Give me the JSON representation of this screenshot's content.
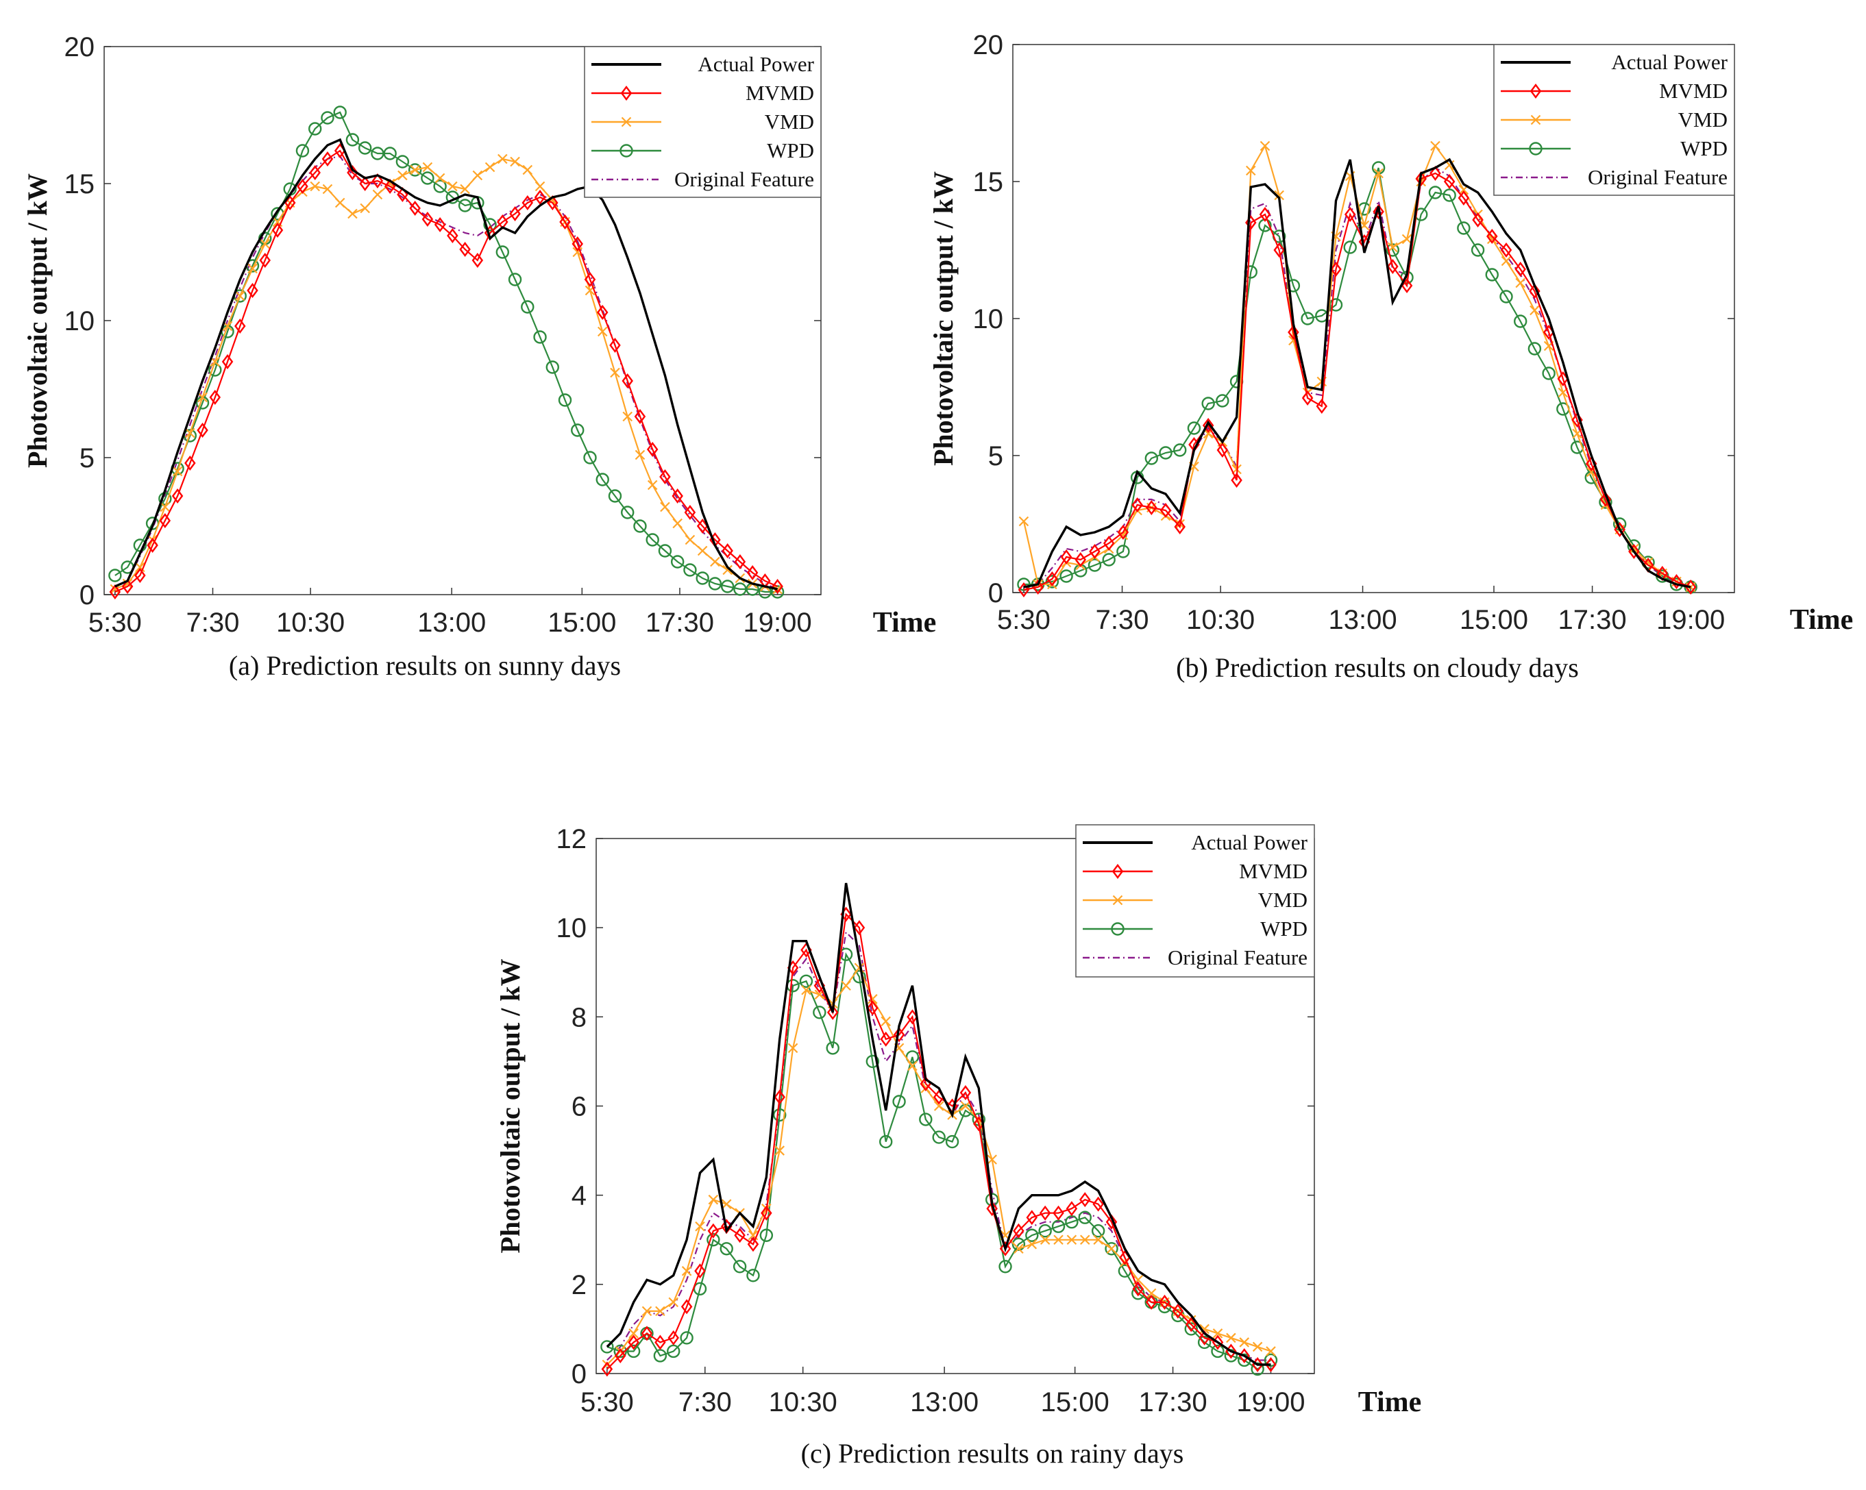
{
  "colors": {
    "actual": "#000000",
    "mvmd": "#ff0000",
    "vmd": "#ffa528",
    "wpd": "#2e8b3e",
    "orig": "#8b1a8b"
  },
  "chart_data": [
    {
      "id": "a",
      "type": "line",
      "caption": "(a)  Prediction results on sunny days",
      "ylabel": "Photovoltaic output / kW",
      "xlabel": "Time",
      "ylim": [
        0,
        20
      ],
      "yticks": [
        0,
        5,
        10,
        15,
        20
      ],
      "xlim": [
        0,
        66
      ],
      "xticks": [
        {
          "v": 1,
          "l": "5:30"
        },
        {
          "v": 10,
          "l": "7:30"
        },
        {
          "v": 19,
          "l": "10:30"
        },
        {
          "v": 32,
          "l": "13:00"
        },
        {
          "v": 44,
          "l": "15:00"
        },
        {
          "v": 53,
          "l": "17:30"
        },
        {
          "v": 62,
          "l": "19:00"
        }
      ],
      "legend": {
        "position": "top-right",
        "entries": [
          "Actual Power",
          "MVMD",
          "VMD",
          "WPD",
          "Original Feature"
        ]
      },
      "series": [
        {
          "name": "Actual Power",
          "key": "actual",
          "marker": "none",
          "values": [
            0.3,
            0.5,
            1.5,
            2.5,
            3.8,
            5.2,
            6.5,
            7.8,
            9.0,
            10.3,
            11.5,
            12.5,
            13.3,
            14.0,
            14.6,
            15.3,
            15.9,
            16.4,
            16.6,
            15.5,
            15.2,
            15.3,
            15.1,
            14.8,
            14.5,
            14.3,
            14.2,
            14.4,
            14.6,
            14.5,
            13.0,
            13.4,
            13.2,
            13.8,
            14.2,
            14.5,
            14.6,
            14.8,
            14.9,
            14.4,
            13.5,
            12.3,
            11.0,
            9.5,
            8.0,
            6.2,
            4.6,
            3.0,
            1.8,
            1.0,
            0.6,
            0.4,
            0.3,
            0.2
          ]
        },
        {
          "name": "MVMD",
          "key": "mvmd",
          "marker": "diamond",
          "values": [
            0.1,
            0.3,
            0.7,
            1.8,
            2.7,
            3.6,
            4.8,
            6.0,
            7.2,
            8.5,
            9.8,
            11.1,
            12.2,
            13.3,
            14.3,
            14.9,
            15.4,
            15.9,
            16.2,
            15.4,
            15.0,
            15.1,
            14.9,
            14.6,
            14.1,
            13.7,
            13.5,
            13.1,
            12.6,
            12.2,
            13.2,
            13.6,
            13.9,
            14.3,
            14.5,
            14.3,
            13.6,
            12.8,
            11.5,
            10.3,
            9.1,
            7.8,
            6.5,
            5.3,
            4.3,
            3.6,
            3.0,
            2.5,
            2.0,
            1.6,
            1.2,
            0.8,
            0.5,
            0.3
          ]
        },
        {
          "name": "VMD",
          "key": "vmd",
          "marker": "x",
          "values": [
            0.2,
            0.4,
            1.0,
            2.0,
            3.2,
            4.5,
            5.9,
            7.2,
            8.5,
            9.8,
            10.9,
            11.9,
            12.8,
            13.6,
            14.3,
            14.7,
            14.9,
            14.8,
            14.3,
            13.9,
            14.1,
            14.6,
            15.0,
            15.3,
            15.5,
            15.6,
            15.2,
            14.9,
            14.8,
            15.3,
            15.6,
            15.9,
            15.8,
            15.5,
            14.9,
            14.4,
            13.6,
            12.5,
            11.1,
            9.6,
            8.1,
            6.5,
            5.1,
            4.0,
            3.2,
            2.6,
            2.0,
            1.6,
            1.2,
            0.9,
            0.6,
            0.4,
            0.3,
            0.2
          ]
        },
        {
          "name": "WPD",
          "key": "wpd",
          "marker": "circle",
          "values": [
            0.7,
            1.0,
            1.8,
            2.6,
            3.5,
            4.6,
            5.8,
            7.0,
            8.2,
            9.6,
            10.9,
            12.0,
            13.0,
            13.9,
            14.8,
            16.2,
            17.0,
            17.4,
            17.6,
            16.6,
            16.3,
            16.1,
            16.1,
            15.8,
            15.5,
            15.2,
            14.9,
            14.5,
            14.2,
            14.3,
            13.5,
            12.5,
            11.5,
            10.5,
            9.4,
            8.3,
            7.1,
            6.0,
            5.0,
            4.2,
            3.6,
            3.0,
            2.5,
            2.0,
            1.6,
            1.2,
            0.9,
            0.6,
            0.4,
            0.3,
            0.2,
            0.2,
            0.1,
            0.1
          ]
        },
        {
          "name": "Original Feature",
          "key": "orig",
          "marker": "none",
          "values": [
            0.3,
            0.5,
            1.4,
            2.4,
            3.6,
            4.9,
            6.2,
            7.5,
            8.7,
            10.0,
            11.2,
            12.3,
            13.2,
            14.0,
            14.6,
            15.1,
            15.6,
            15.9,
            16.0,
            15.3,
            15.0,
            15.0,
            14.8,
            14.5,
            14.1,
            13.8,
            13.6,
            13.4,
            13.2,
            13.1,
            13.4,
            13.8,
            14.1,
            14.4,
            14.6,
            14.4,
            13.8,
            12.9,
            11.7,
            10.4,
            9.1,
            7.7,
            6.4,
            5.2,
            4.2,
            3.5,
            2.9,
            2.3,
            1.8,
            1.4,
            1.0,
            0.7,
            0.4,
            0.2
          ]
        }
      ]
    },
    {
      "id": "b",
      "type": "line",
      "caption": "(b)   Prediction results on cloudy days",
      "ylabel": "Photovoltaic output / kW",
      "xlabel": "Time",
      "ylim": [
        0,
        20
      ],
      "yticks": [
        0,
        5,
        10,
        15,
        20
      ],
      "xlim": [
        0,
        66
      ],
      "xticks": [
        {
          "v": 1,
          "l": "5:30"
        },
        {
          "v": 10,
          "l": "7:30"
        },
        {
          "v": 19,
          "l": "10:30"
        },
        {
          "v": 32,
          "l": "13:00"
        },
        {
          "v": 44,
          "l": "15:00"
        },
        {
          "v": 53,
          "l": "17:30"
        },
        {
          "v": 62,
          "l": "19:00"
        }
      ],
      "legend": {
        "position": "top-right",
        "entries": [
          "Actual Power",
          "MVMD",
          "VMD",
          "WPD",
          "Original Feature"
        ]
      },
      "series": [
        {
          "name": "Actual Power",
          "key": "actual",
          "marker": "none",
          "values": [
            0.2,
            0.3,
            1.5,
            2.4,
            2.1,
            2.2,
            2.4,
            2.8,
            4.4,
            3.8,
            3.6,
            2.9,
            5.2,
            6.2,
            5.5,
            6.4,
            14.8,
            14.9,
            14.4,
            9.8,
            7.5,
            7.4,
            14.3,
            15.8,
            12.4,
            14.1,
            10.6,
            11.6,
            15.3,
            15.5,
            15.8,
            14.9,
            14.6,
            13.9,
            13.1,
            12.5,
            11.2,
            10.0,
            8.4,
            6.6,
            5.0,
            3.6,
            2.3,
            1.5,
            0.8,
            0.5,
            0.3,
            0.2
          ]
        },
        {
          "name": "MVMD",
          "key": "mvmd",
          "marker": "diamond",
          "values": [
            0.1,
            0.2,
            0.5,
            1.3,
            1.2,
            1.5,
            1.8,
            2.2,
            3.2,
            3.1,
            3.0,
            2.4,
            5.4,
            6.1,
            5.2,
            4.1,
            13.5,
            13.8,
            12.5,
            9.5,
            7.1,
            6.8,
            11.8,
            13.8,
            12.8,
            13.9,
            11.9,
            11.2,
            15.1,
            15.3,
            15.0,
            14.4,
            13.6,
            13.0,
            12.5,
            11.8,
            11.0,
            9.5,
            7.8,
            6.3,
            4.7,
            3.4,
            2.3,
            1.5,
            1.0,
            0.7,
            0.4,
            0.2
          ]
        },
        {
          "name": "VMD",
          "key": "vmd",
          "marker": "x",
          "values": [
            2.6,
            0.3,
            0.3,
            1.1,
            1.0,
            1.3,
            1.6,
            2.1,
            3.0,
            3.1,
            2.8,
            2.5,
            4.6,
            5.8,
            5.5,
            4.5,
            15.4,
            16.3,
            14.5,
            9.2,
            7.3,
            7.7,
            13.0,
            15.2,
            13.4,
            15.3,
            12.6,
            12.9,
            15.0,
            16.3,
            15.6,
            14.7,
            13.8,
            12.9,
            12.1,
            11.3,
            10.3,
            9.0,
            7.3,
            5.8,
            4.4,
            3.2,
            2.3,
            1.6,
            1.1,
            0.7,
            0.4,
            0.2
          ]
        },
        {
          "name": "WPD",
          "key": "wpd",
          "marker": "circle",
          "values": [
            0.3,
            0.3,
            0.4,
            0.6,
            0.8,
            1.0,
            1.2,
            1.5,
            4.2,
            4.9,
            5.1,
            5.2,
            6.0,
            6.9,
            7.0,
            7.7,
            11.7,
            13.4,
            13.0,
            11.2,
            10.0,
            10.1,
            10.5,
            12.6,
            14.0,
            15.5,
            12.5,
            11.5,
            13.8,
            14.6,
            14.5,
            13.3,
            12.5,
            11.6,
            10.8,
            9.9,
            8.9,
            8.0,
            6.7,
            5.3,
            4.2,
            3.3,
            2.5,
            1.7,
            1.1,
            0.6,
            0.3,
            0.2
          ]
        },
        {
          "name": "Original Feature",
          "key": "orig",
          "marker": "none",
          "values": [
            0.2,
            0.3,
            0.9,
            1.6,
            1.5,
            1.7,
            2.0,
            2.4,
            3.4,
            3.4,
            3.2,
            2.6,
            5.2,
            6.0,
            5.5,
            4.6,
            14.0,
            14.2,
            13.0,
            9.6,
            7.3,
            7.2,
            12.5,
            14.2,
            12.8,
            14.3,
            11.8,
            11.6,
            15.0,
            15.5,
            15.2,
            14.4,
            13.7,
            13.0,
            12.3,
            11.6,
            10.7,
            9.4,
            7.8,
            6.2,
            4.6,
            3.4,
            2.3,
            1.5,
            1.0,
            0.6,
            0.4,
            0.2
          ]
        }
      ]
    },
    {
      "id": "c",
      "type": "line",
      "caption": "(c)   Prediction results on rainy days",
      "ylabel": "Photovoltaic output / kW",
      "xlabel": "Time",
      "ylim": [
        0,
        12
      ],
      "yticks": [
        0,
        2,
        4,
        6,
        8,
        10,
        12
      ],
      "xlim": [
        0,
        66
      ],
      "xticks": [
        {
          "v": 1,
          "l": "5:30"
        },
        {
          "v": 10,
          "l": "7:30"
        },
        {
          "v": 19,
          "l": "10:30"
        },
        {
          "v": 32,
          "l": "13:00"
        },
        {
          "v": 44,
          "l": "15:00"
        },
        {
          "v": 53,
          "l": "17:30"
        },
        {
          "v": 62,
          "l": "19:00"
        }
      ],
      "legend": {
        "position": "top-right",
        "entries": [
          "Actual Power",
          "MVMD",
          "VMD",
          "WPD",
          "Original Feature"
        ]
      },
      "series": [
        {
          "name": "Actual Power",
          "key": "actual",
          "marker": "none",
          "values": [
            0.6,
            0.9,
            1.6,
            2.1,
            2.0,
            2.2,
            3.0,
            4.5,
            4.8,
            3.2,
            3.6,
            3.3,
            4.4,
            7.5,
            9.7,
            9.7,
            8.9,
            8.1,
            11.0,
            9.3,
            7.5,
            5.9,
            7.8,
            8.7,
            6.6,
            6.4,
            5.8,
            7.1,
            6.4,
            3.8,
            2.8,
            3.7,
            4.0,
            4.0,
            4.0,
            4.1,
            4.3,
            4.1,
            3.5,
            2.8,
            2.3,
            2.1,
            2.0,
            1.6,
            1.3,
            0.9,
            0.7,
            0.5,
            0.4,
            0.2,
            0.2
          ]
        },
        {
          "name": "MVMD",
          "key": "mvmd",
          "marker": "diamond",
          "values": [
            0.1,
            0.4,
            0.7,
            0.9,
            0.7,
            0.8,
            1.5,
            2.3,
            3.2,
            3.3,
            3.1,
            2.9,
            3.6,
            6.2,
            9.1,
            9.5,
            8.7,
            8.1,
            10.3,
            10.0,
            8.2,
            7.5,
            7.6,
            8.0,
            6.5,
            6.2,
            6.0,
            6.3,
            5.6,
            3.7,
            2.8,
            3.2,
            3.5,
            3.6,
            3.6,
            3.7,
            3.9,
            3.8,
            3.4,
            2.6,
            1.9,
            1.6,
            1.6,
            1.4,
            1.1,
            0.8,
            0.7,
            0.5,
            0.4,
            0.2,
            0.2
          ]
        },
        {
          "name": "VMD",
          "key": "vmd",
          "marker": "x",
          "values": [
            0.2,
            0.5,
            0.9,
            1.4,
            1.4,
            1.6,
            2.3,
            3.3,
            3.9,
            3.8,
            3.6,
            3.1,
            3.7,
            5.0,
            7.3,
            8.6,
            8.5,
            8.3,
            8.7,
            9.1,
            8.4,
            7.9,
            7.3,
            6.9,
            6.4,
            6.0,
            5.8,
            6.0,
            5.7,
            4.8,
            3.1,
            2.8,
            2.9,
            3.0,
            3.0,
            3.0,
            3.0,
            3.0,
            2.8,
            2.5,
            2.1,
            1.8,
            1.6,
            1.4,
            1.2,
            1.0,
            0.9,
            0.8,
            0.7,
            0.6,
            0.5
          ]
        },
        {
          "name": "WPD",
          "key": "wpd",
          "marker": "circle",
          "values": [
            0.6,
            0.5,
            0.5,
            0.9,
            0.4,
            0.5,
            0.8,
            1.9,
            3.0,
            2.8,
            2.4,
            2.2,
            3.1,
            5.8,
            8.7,
            8.8,
            8.1,
            7.3,
            9.4,
            8.9,
            7.0,
            5.2,
            6.1,
            7.1,
            5.7,
            5.3,
            5.2,
            5.9,
            5.7,
            3.9,
            2.4,
            2.9,
            3.1,
            3.2,
            3.3,
            3.4,
            3.5,
            3.2,
            2.8,
            2.3,
            1.8,
            1.6,
            1.5,
            1.3,
            1.0,
            0.7,
            0.5,
            0.4,
            0.3,
            0.1,
            0.3
          ]
        },
        {
          "name": "Original Feature",
          "key": "orig",
          "marker": "none",
          "values": [
            0.3,
            0.6,
            1.1,
            1.4,
            1.3,
            1.5,
            2.1,
            3.0,
            3.6,
            3.4,
            3.3,
            3.0,
            3.8,
            6.0,
            8.9,
            9.3,
            8.6,
            8.1,
            9.9,
            9.6,
            8.0,
            7.0,
            7.4,
            7.8,
            6.4,
            6.0,
            5.8,
            6.3,
            5.8,
            4.1,
            2.8,
            3.1,
            3.3,
            3.4,
            3.4,
            3.5,
            3.6,
            3.5,
            3.2,
            2.6,
            2.0,
            1.7,
            1.6,
            1.4,
            1.1,
            0.8,
            0.7,
            0.5,
            0.4,
            0.3,
            0.3
          ]
        }
      ]
    }
  ]
}
